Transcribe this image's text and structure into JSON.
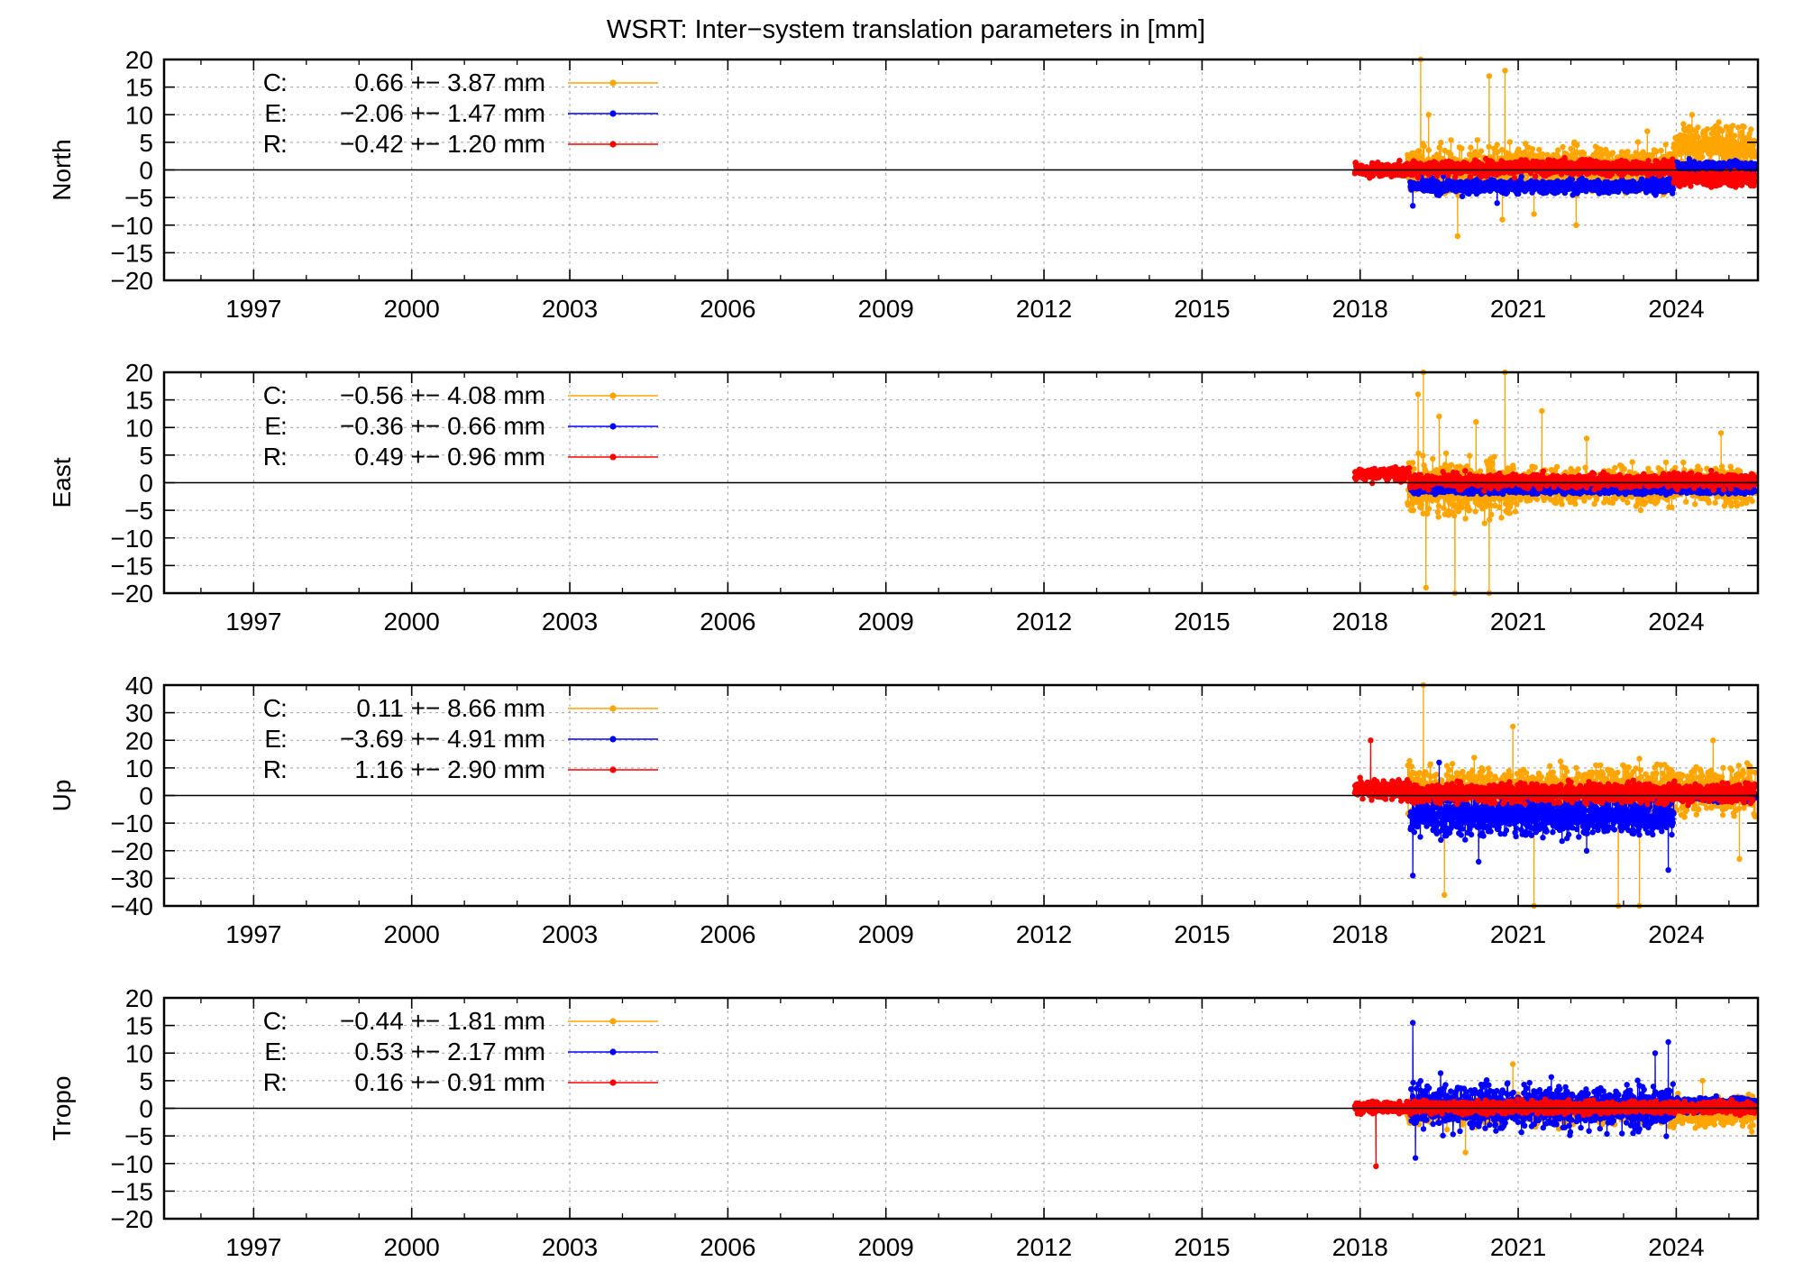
{
  "title": "WSRT: Inter−system translation parameters in [mm]",
  "colors": {
    "C": "#ffa500",
    "E": "#0000ff",
    "R": "#ff0000",
    "zero_line": "#000000",
    "grid": "#a0a0a0"
  },
  "chart_data": [
    {
      "type": "scatter",
      "ylabel": "North",
      "ylim": [
        -20,
        20
      ],
      "yticks": [
        "20",
        "15",
        "10",
        "5",
        "0",
        "−5",
        "−10",
        "−15",
        "−20"
      ],
      "ytick_values": [
        20,
        15,
        10,
        5,
        0,
        -5,
        -10,
        -15,
        -20
      ],
      "xlim": [
        1995.3,
        2025.55
      ],
      "xticks": [
        "1997",
        "2000",
        "2003",
        "2006",
        "2009",
        "2012",
        "2015",
        "2018",
        "2021",
        "2024"
      ],
      "xtick_values": [
        1997,
        2000,
        2003,
        2006,
        2009,
        2012,
        2015,
        2018,
        2021,
        2024
      ],
      "grid": true,
      "legend_position": "top-left",
      "series": [
        {
          "name": "C",
          "label": "0.66 +− 3.87 mm",
          "mean": 0.66,
          "std": 3.87,
          "color": "#ffa500",
          "x_range": [
            2018.9,
            2025.5
          ],
          "segments": [
            [
              2018.9,
              2023.95,
              0.2,
              3.2
            ],
            [
              2023.95,
              2025.5,
              4.5,
              3.0
            ]
          ],
          "spikes": [
            [
              2019.15,
              20
            ],
            [
              2019.3,
              10
            ],
            [
              2019.85,
              -12
            ],
            [
              2020.45,
              17
            ],
            [
              2020.75,
              18
            ],
            [
              2020.7,
              -9
            ],
            [
              2021.3,
              -8
            ],
            [
              2022.1,
              -10
            ],
            [
              2023.45,
              7
            ],
            [
              2024.3,
              10
            ]
          ]
        },
        {
          "name": "E",
          "label": "−2.06 +− 1.47 mm",
          "mean": -2.06,
          "std": 1.47,
          "color": "#0000ff",
          "x_range": [
            2018.95,
            2025.5
          ],
          "segments": [
            [
              2018.95,
              2023.95,
              -3.0,
              1.0
            ],
            [
              2023.95,
              2025.5,
              0.5,
              0.8
            ]
          ],
          "spikes": [
            [
              2019.0,
              -6.5
            ],
            [
              2020.6,
              -6
            ]
          ]
        },
        {
          "name": "R",
          "label": "−0.42 +− 1.20 mm",
          "mean": -0.42,
          "std": 1.2,
          "color": "#ff0000",
          "x_range": [
            2017.9,
            2025.5
          ],
          "segments": [
            [
              2017.9,
              2018.95,
              0.0,
              1.0
            ],
            [
              2018.95,
              2023.95,
              0.4,
              1.1
            ],
            [
              2023.95,
              2025.5,
              -1.6,
              1.0
            ]
          ],
          "spikes": []
        }
      ]
    },
    {
      "type": "scatter",
      "ylabel": "East",
      "ylim": [
        -20,
        20
      ],
      "yticks": [
        "20",
        "15",
        "10",
        "5",
        "0",
        "−5",
        "−10",
        "−15",
        "−20"
      ],
      "ytick_values": [
        20,
        15,
        10,
        5,
        0,
        -5,
        -10,
        -15,
        -20
      ],
      "xlim": [
        1995.3,
        2025.55
      ],
      "xticks": [
        "1997",
        "2000",
        "2003",
        "2006",
        "2009",
        "2012",
        "2015",
        "2018",
        "2021",
        "2024"
      ],
      "xtick_values": [
        1997,
        2000,
        2003,
        2006,
        2009,
        2012,
        2015,
        2018,
        2021,
        2024
      ],
      "grid": true,
      "legend_position": "top-left",
      "series": [
        {
          "name": "C",
          "label": "−0.56 +− 4.08 mm",
          "mean": -0.56,
          "std": 4.08,
          "color": "#ffa500",
          "x_range": [
            2018.9,
            2025.5
          ],
          "segments": [
            [
              2018.9,
              2021.0,
              -1.0,
              4.0
            ],
            [
              2021.0,
              2025.5,
              -0.5,
              2.8
            ]
          ],
          "spikes": [
            [
              2019.1,
              16
            ],
            [
              2019.2,
              20
            ],
            [
              2019.25,
              -19
            ],
            [
              2019.5,
              12
            ],
            [
              2019.8,
              -20
            ],
            [
              2020.2,
              11
            ],
            [
              2020.45,
              -20
            ],
            [
              2020.75,
              20
            ],
            [
              2021.45,
              13
            ],
            [
              2022.3,
              8
            ],
            [
              2024.85,
              9
            ]
          ]
        },
        {
          "name": "E",
          "label": "−0.36 +− 0.66 mm",
          "mean": -0.36,
          "std": 0.66,
          "color": "#0000ff",
          "x_range": [
            2018.95,
            2025.5
          ],
          "segments": [
            [
              2018.95,
              2025.5,
              -1.2,
              0.6
            ]
          ],
          "spikes": []
        },
        {
          "name": "R",
          "label": "0.49 +− 0.96 mm",
          "mean": 0.49,
          "std": 0.96,
          "color": "#ff0000",
          "x_range": [
            2017.9,
            2025.5
          ],
          "segments": [
            [
              2017.9,
              2018.95,
              1.6,
              0.9
            ],
            [
              2018.95,
              2025.5,
              0.3,
              1.0
            ]
          ],
          "spikes": []
        }
      ]
    },
    {
      "type": "scatter",
      "ylabel": "Up",
      "ylim": [
        -40,
        40
      ],
      "yticks": [
        "40",
        "30",
        "20",
        "10",
        "0",
        "−10",
        "−20",
        "−30",
        "−40"
      ],
      "ytick_values": [
        40,
        30,
        20,
        10,
        0,
        -10,
        -20,
        -30,
        -40
      ],
      "xlim": [
        1995.3,
        2025.55
      ],
      "xticks": [
        "1997",
        "2000",
        "2003",
        "2006",
        "2009",
        "2012",
        "2015",
        "2018",
        "2021",
        "2024"
      ],
      "xtick_values": [
        1997,
        2000,
        2003,
        2006,
        2009,
        2012,
        2015,
        2018,
        2021,
        2024
      ],
      "grid": true,
      "legend_position": "top-left",
      "series": [
        {
          "name": "C",
          "label": "0.11 +− 8.66 mm",
          "mean": 0.11,
          "std": 8.66,
          "color": "#ffa500",
          "x_range": [
            2018.9,
            2025.5
          ],
          "segments": [
            [
              2018.9,
              2025.5,
              2.0,
              7.0
            ]
          ],
          "spikes": [
            [
              2019.2,
              40
            ],
            [
              2019.6,
              -36
            ],
            [
              2020.9,
              25
            ],
            [
              2021.3,
              -40
            ],
            [
              2022.9,
              -40
            ],
            [
              2023.3,
              -40
            ],
            [
              2024.7,
              20
            ],
            [
              2025.2,
              -23
            ]
          ]
        },
        {
          "name": "E",
          "label": "−3.69 +− 4.91 mm",
          "mean": -3.69,
          "std": 4.91,
          "color": "#0000ff",
          "x_range": [
            2018.95,
            2025.5
          ],
          "segments": [
            [
              2018.95,
              2023.95,
              -7.0,
              6.0
            ],
            [
              2023.95,
              2025.5,
              0.0,
              1.5
            ]
          ],
          "spikes": [
            [
              2019.0,
              -29
            ],
            [
              2019.5,
              12
            ],
            [
              2020.25,
              -24
            ],
            [
              2022.3,
              -20
            ],
            [
              2023.85,
              -27
            ]
          ]
        },
        {
          "name": "R",
          "label": "1.16 +− 2.90 mm",
          "mean": 1.16,
          "std": 2.9,
          "color": "#ff0000",
          "x_range": [
            2017.9,
            2025.5
          ],
          "segments": [
            [
              2017.9,
              2018.95,
              2.0,
              3.0
            ],
            [
              2018.95,
              2025.5,
              1.0,
              2.8
            ]
          ],
          "spikes": [
            [
              2018.2,
              20
            ]
          ]
        }
      ]
    },
    {
      "type": "scatter",
      "ylabel": "Tropo",
      "ylim": [
        -20,
        20
      ],
      "yticks": [
        "20",
        "15",
        "10",
        "5",
        "0",
        "−5",
        "−10",
        "−15",
        "−20"
      ],
      "ytick_values": [
        20,
        15,
        10,
        5,
        0,
        -5,
        -10,
        -15,
        -20
      ],
      "xlim": [
        1995.3,
        2025.55
      ],
      "xticks": [
        "1997",
        "2000",
        "2003",
        "2006",
        "2009",
        "2012",
        "2015",
        "2018",
        "2021",
        "2024"
      ],
      "xtick_values": [
        1997,
        2000,
        2003,
        2006,
        2009,
        2012,
        2015,
        2018,
        2021,
        2024
      ],
      "grid": true,
      "legend_position": "top-left",
      "series": [
        {
          "name": "C",
          "label": "−0.44 +− 1.81 mm",
          "mean": -0.44,
          "std": 1.81,
          "color": "#ffa500",
          "x_range": [
            2018.9,
            2025.5
          ],
          "segments": [
            [
              2018.9,
              2023.95,
              -0.5,
              1.8
            ],
            [
              2023.95,
              2025.5,
              -0.8,
              2.2
            ]
          ],
          "spikes": [
            [
              2020.0,
              -8
            ],
            [
              2020.9,
              8
            ],
            [
              2024.5,
              5
            ]
          ]
        },
        {
          "name": "E",
          "label": "0.53 +− 2.17 mm",
          "mean": 0.53,
          "std": 2.17,
          "color": "#0000ff",
          "x_range": [
            2018.95,
            2025.5
          ],
          "segments": [
            [
              2018.95,
              2023.95,
              0.3,
              3.2
            ],
            [
              2023.95,
              2025.5,
              0.6,
              1.0
            ]
          ],
          "spikes": [
            [
              2019.0,
              15.5
            ],
            [
              2019.05,
              -9
            ],
            [
              2023.85,
              12
            ],
            [
              2023.6,
              10
            ]
          ]
        },
        {
          "name": "R",
          "label": "0.16 +− 0.91 mm",
          "mean": 0.16,
          "std": 0.91,
          "color": "#ff0000",
          "x_range": [
            2017.9,
            2025.5
          ],
          "segments": [
            [
              2017.9,
              2025.5,
              0.2,
              0.9
            ]
          ],
          "spikes": [
            [
              2018.3,
              -10.5
            ]
          ]
        }
      ]
    }
  ]
}
